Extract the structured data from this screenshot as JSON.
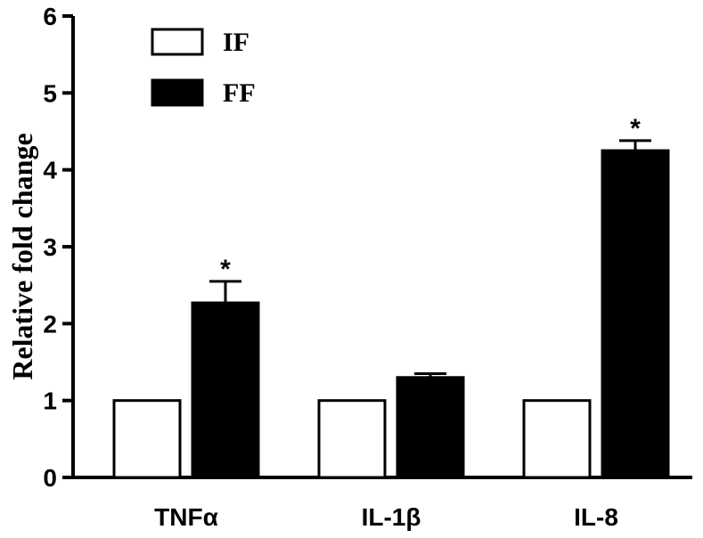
{
  "chart_data": {
    "type": "bar",
    "categories": [
      "TNFα",
      "IL-1β",
      "IL-8"
    ],
    "series": [
      {
        "name": "IF",
        "values": [
          1.0,
          1.0,
          1.0
        ],
        "errors": [
          0,
          0,
          0
        ],
        "fill": "#ffffff",
        "stroke": "#000000"
      },
      {
        "name": "FF",
        "values": [
          2.27,
          1.3,
          4.25
        ],
        "errors": [
          0.28,
          0.05,
          0.13
        ],
        "fill": "#000000",
        "stroke": "#000000"
      }
    ],
    "significance": [
      "*",
      "",
      "*"
    ],
    "ylabel": "Relative fold change",
    "xlabel": "",
    "ylim": [
      0,
      6
    ],
    "yticks": [
      "0",
      "1",
      "2",
      "3",
      "4",
      "5",
      "6"
    ],
    "grid": false,
    "legend_position": "top-left"
  }
}
